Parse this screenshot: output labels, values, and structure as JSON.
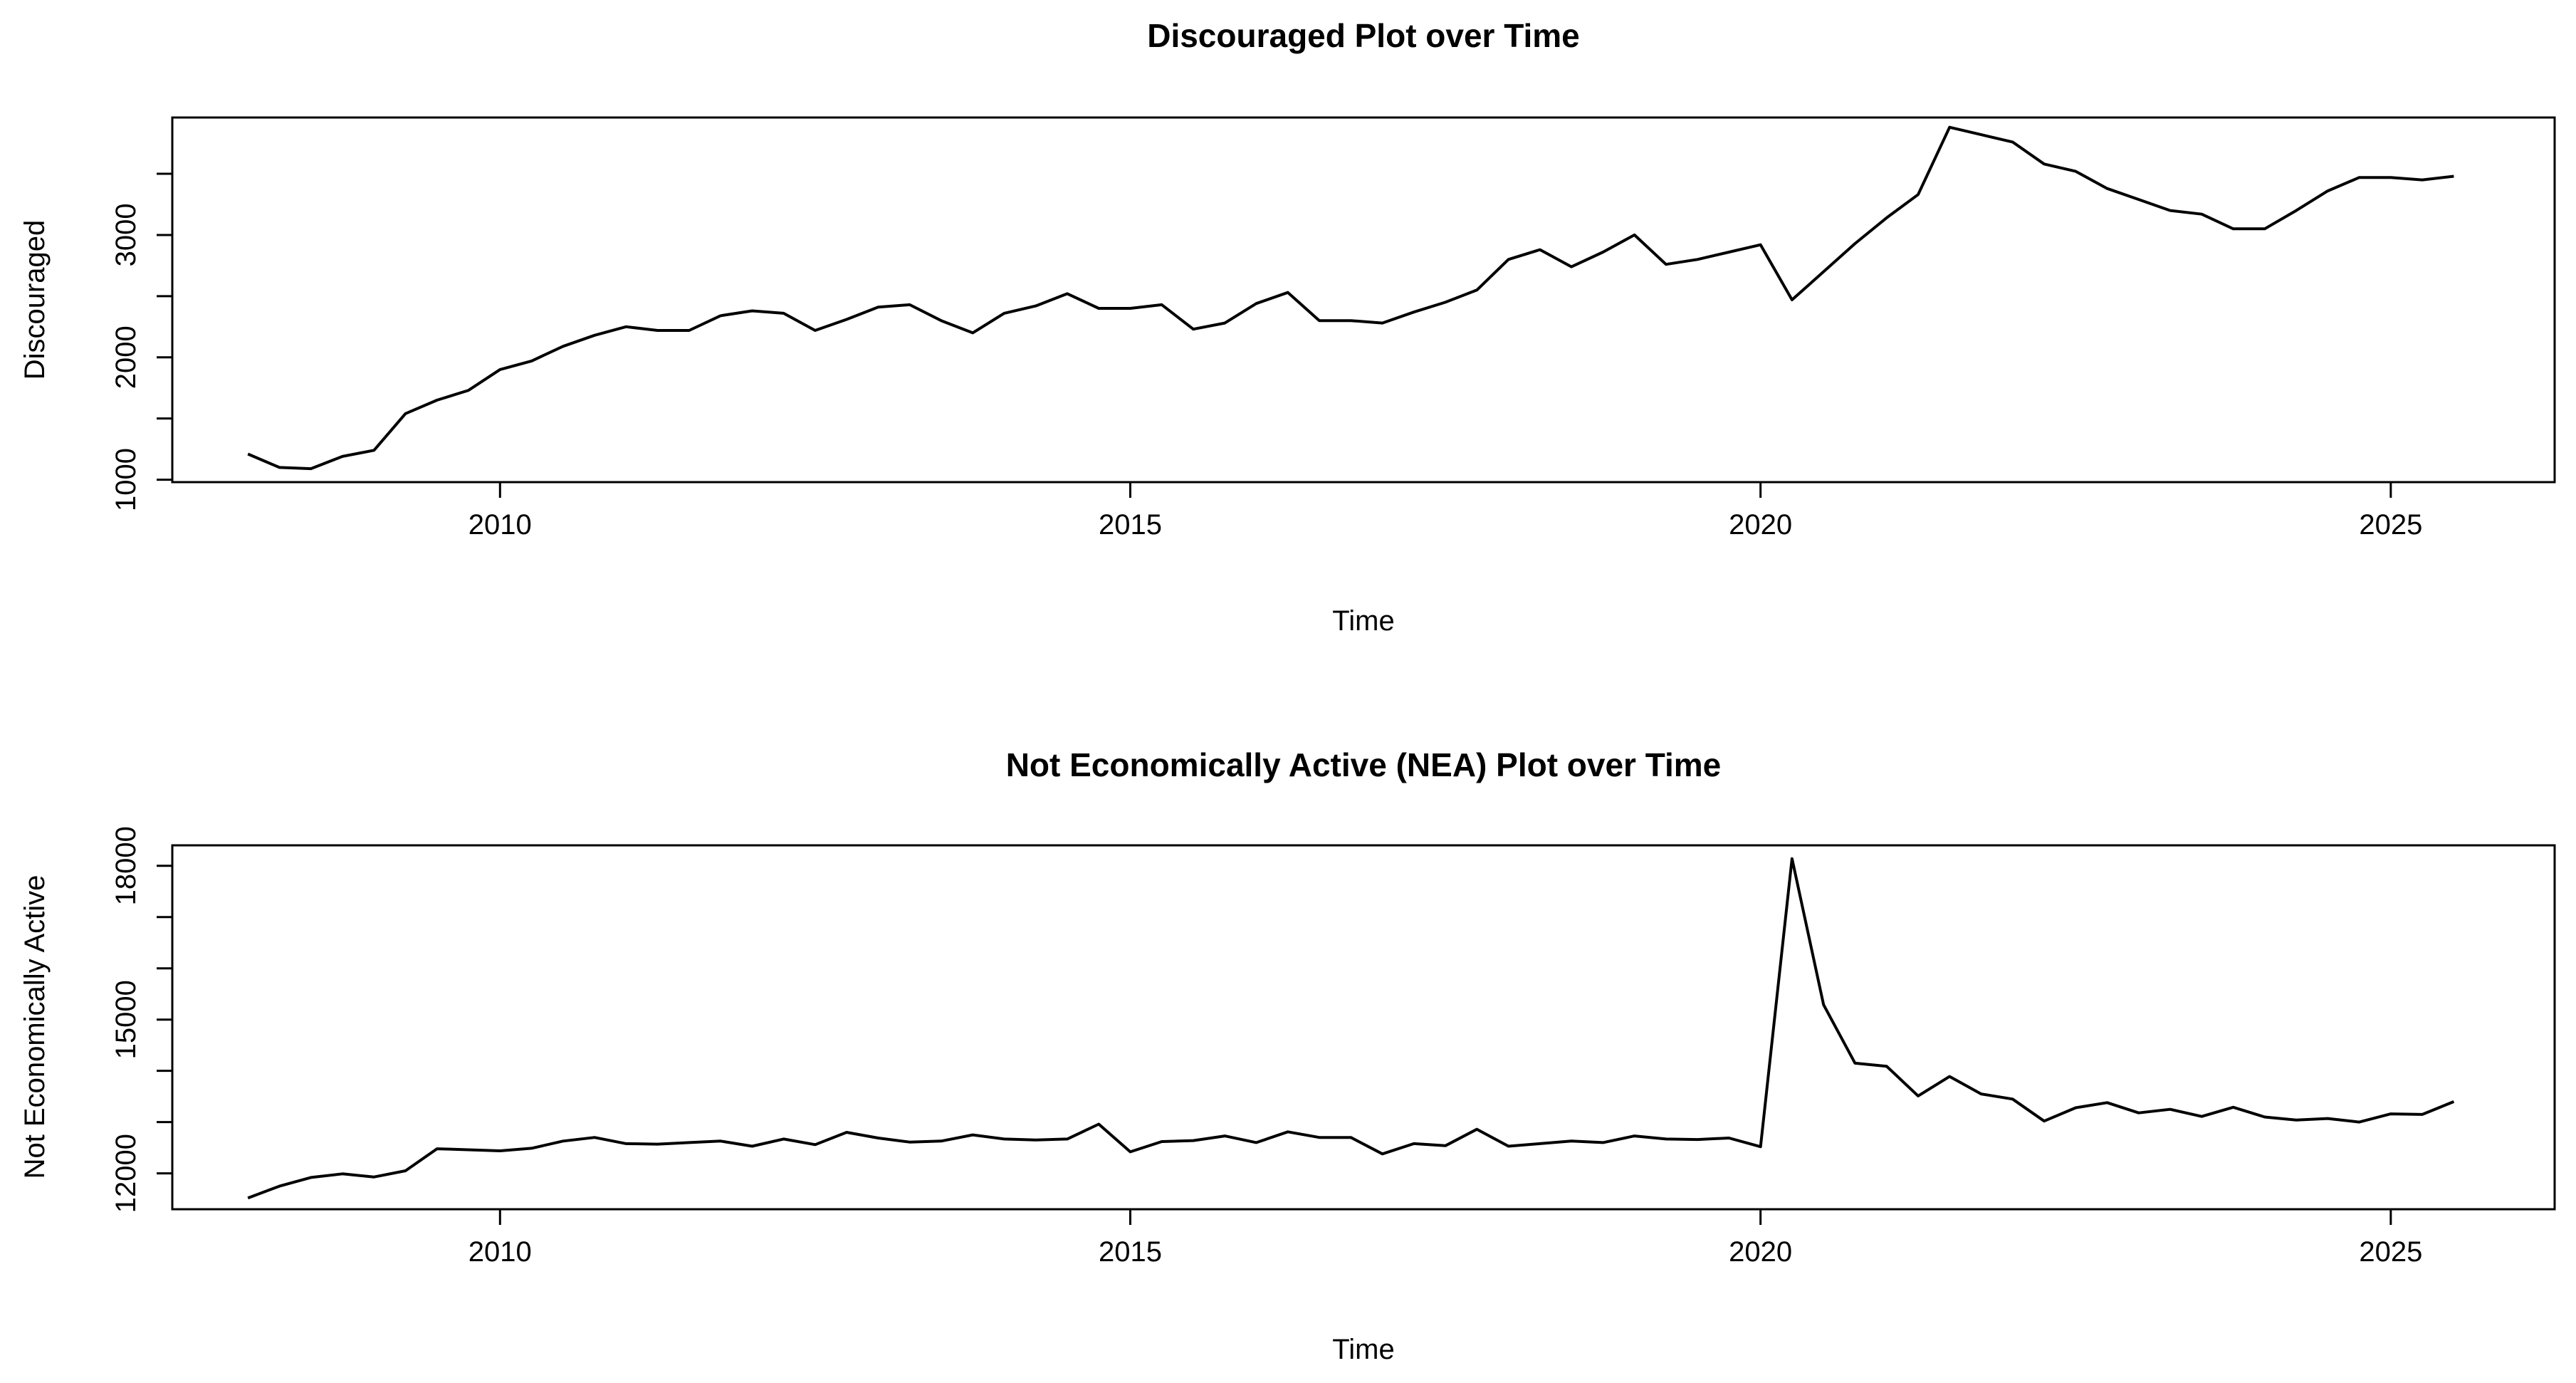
{
  "chart_data": [
    {
      "type": "line",
      "title": "Discouraged Plot over Time",
      "xlabel": "Time",
      "ylabel": "Discouraged",
      "x_ticks": [
        2010,
        2015,
        2020,
        2025
      ],
      "y_ticks": [
        1000,
        1500,
        2000,
        2500,
        3000,
        3500
      ],
      "y_tick_labels": [
        "1000",
        "",
        "2000",
        "",
        "3000",
        ""
      ],
      "xlim": [
        2007.4,
        2026.3
      ],
      "ylim": [
        980,
        3960
      ],
      "grid": false,
      "legend": "none",
      "series": [
        {
          "x": [
            2008.0,
            2008.25,
            2008.5,
            2008.75,
            2009.0,
            2009.25,
            2009.5,
            2009.75,
            2010.0,
            2010.25,
            2010.5,
            2010.75,
            2011.0,
            2011.25,
            2011.5,
            2011.75,
            2012.0,
            2012.25,
            2012.5,
            2012.75,
            2013.0,
            2013.25,
            2013.5,
            2013.75,
            2014.0,
            2014.25,
            2014.5,
            2014.75,
            2015.0,
            2015.25,
            2015.5,
            2015.75,
            2016.0,
            2016.25,
            2016.5,
            2016.75,
            2017.0,
            2017.25,
            2017.5,
            2017.75,
            2018.0,
            2018.25,
            2018.5,
            2018.75,
            2019.0,
            2019.25,
            2019.5,
            2019.75,
            2020.0,
            2020.25,
            2020.5,
            2020.75,
            2021.0,
            2021.25,
            2021.5,
            2021.75,
            2022.0,
            2022.25,
            2022.5,
            2022.75,
            2023.0,
            2023.25,
            2023.5,
            2023.75,
            2024.0,
            2024.25,
            2024.5,
            2024.75,
            2025.0,
            2025.25,
            2025.5
          ],
          "values": [
            1210,
            1100,
            1090,
            1190,
            1240,
            1540,
            1650,
            1730,
            1900,
            1970,
            2090,
            2180,
            2250,
            2220,
            2220,
            2340,
            2380,
            2360,
            2220,
            2310,
            2410,
            2430,
            2300,
            2200,
            2360,
            2420,
            2520,
            2400,
            2400,
            2430,
            2230,
            2280,
            2440,
            2530,
            2300,
            2300,
            2280,
            2370,
            2450,
            2550,
            2800,
            2880,
            2740,
            2860,
            3000,
            2760,
            2800,
            2860,
            2920,
            2470,
            2700,
            2930,
            3140,
            3330,
            3880,
            3820,
            3760,
            3580,
            3520,
            3380,
            3290,
            3200,
            3170,
            3050,
            3050,
            3200,
            3360,
            3470,
            3470,
            3450,
            3480
          ]
        }
      ]
    },
    {
      "type": "line",
      "title": "Not Economically Active (NEA) Plot over Time",
      "xlabel": "Time",
      "ylabel": "Not Economically Active",
      "x_ticks": [
        2010,
        2015,
        2020,
        2025
      ],
      "y_ticks": [
        12000,
        13000,
        14000,
        15000,
        16000,
        17000,
        18000
      ],
      "y_tick_labels": [
        "12000",
        "",
        "",
        "15000",
        "",
        "",
        "18000"
      ],
      "xlim": [
        2007.4,
        2026.3
      ],
      "ylim": [
        11300,
        18400
      ],
      "grid": false,
      "legend": "none",
      "series": [
        {
          "x": [
            2008.0,
            2008.25,
            2008.5,
            2008.75,
            2009.0,
            2009.25,
            2009.5,
            2009.75,
            2010.0,
            2010.25,
            2010.5,
            2010.75,
            2011.0,
            2011.25,
            2011.5,
            2011.75,
            2012.0,
            2012.25,
            2012.5,
            2012.75,
            2013.0,
            2013.25,
            2013.5,
            2013.75,
            2014.0,
            2014.25,
            2014.5,
            2014.75,
            2015.0,
            2015.25,
            2015.5,
            2015.75,
            2016.0,
            2016.25,
            2016.5,
            2016.75,
            2017.0,
            2017.25,
            2017.5,
            2017.75,
            2018.0,
            2018.25,
            2018.5,
            2018.75,
            2019.0,
            2019.25,
            2019.5,
            2019.75,
            2020.0,
            2020.25,
            2020.5,
            2020.75,
            2021.0,
            2021.25,
            2021.5,
            2021.75,
            2022.0,
            2022.25,
            2022.5,
            2022.75,
            2023.0,
            2023.25,
            2023.5,
            2023.75,
            2024.0,
            2024.25,
            2024.5,
            2024.75,
            2025.0,
            2025.25,
            2025.5
          ],
          "values": [
            11520,
            11750,
            11920,
            11990,
            11930,
            12050,
            12480,
            12460,
            12440,
            12490,
            12630,
            12700,
            12580,
            12570,
            12600,
            12630,
            12530,
            12670,
            12560,
            12800,
            12690,
            12610,
            12630,
            12750,
            12670,
            12650,
            12670,
            12960,
            12420,
            12620,
            12640,
            12730,
            12600,
            12810,
            12700,
            12700,
            12380,
            12580,
            12540,
            12860,
            12530,
            12580,
            12630,
            12600,
            12730,
            12670,
            12660,
            12690,
            12520,
            18140,
            15290,
            14150,
            14090,
            13510,
            13890,
            13550,
            13450,
            13020,
            13280,
            13380,
            13180,
            13250,
            13110,
            13290,
            13100,
            13040,
            13070,
            13000,
            13160,
            13150,
            13400
          ]
        }
      ]
    }
  ]
}
